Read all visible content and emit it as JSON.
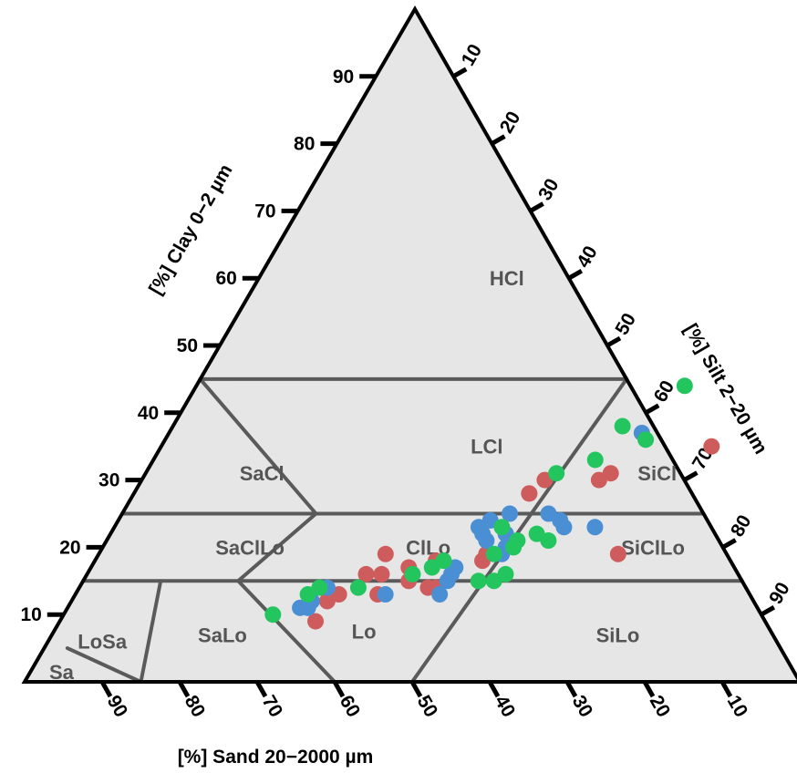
{
  "chart_data": {
    "type": "scatter",
    "subtype": "ternary soil texture triangle",
    "title": "",
    "axes": {
      "clay": {
        "label": "[%] Clay 0−2 µm",
        "ticks": [
          10,
          20,
          30,
          40,
          50,
          60,
          70,
          80,
          90
        ],
        "range": [
          0,
          100
        ]
      },
      "silt": {
        "label": "[%] Silt 2−20 µm",
        "ticks": [
          10,
          20,
          30,
          40,
          50,
          60,
          70,
          80,
          90
        ],
        "range": [
          0,
          100
        ]
      },
      "sand": {
        "label": "[%] Sand 20−2000 µm",
        "ticks": [
          90,
          80,
          70,
          60,
          50,
          40,
          30,
          20,
          10
        ],
        "range": [
          0,
          100
        ]
      }
    },
    "regions": [
      {
        "name": "HCl",
        "label": "HCl",
        "clay": 60,
        "silt": 32
      },
      {
        "name": "LCl",
        "label": "LCl",
        "clay": 35,
        "silt": 42
      },
      {
        "name": "SaCl",
        "label": "SaCl",
        "clay": 31,
        "silt": 15
      },
      {
        "name": "SiCl",
        "label": "SiCl",
        "clay": 31,
        "silt": 66
      },
      {
        "name": "SaClLo",
        "label": "SaClLo",
        "clay": 20,
        "silt": 19
      },
      {
        "name": "ClLo",
        "label": "ClLo",
        "clay": 20,
        "silt": 42
      },
      {
        "name": "SiClLo",
        "label": "SiClLo",
        "clay": 20,
        "silt": 71
      },
      {
        "name": "SaLo",
        "label": "SaLo",
        "clay": 7,
        "silt": 22
      },
      {
        "name": "Lo",
        "label": "Lo",
        "clay": 7.5,
        "silt": 40
      },
      {
        "name": "SiLo",
        "label": "SiLo",
        "clay": 7,
        "silt": 73
      },
      {
        "name": "LoSa",
        "label": "LoSa",
        "clay": 6,
        "silt": 7
      },
      {
        "name": "Sa",
        "label": "Sa",
        "clay": 1.5,
        "silt": 4
      }
    ],
    "series": [
      {
        "color": "#cf5c5c",
        "points": [
          {
            "clay": 35,
            "silt": 71
          },
          {
            "clay": 31,
            "silt": 60
          },
          {
            "clay": 30,
            "silt": 59
          },
          {
            "clay": 30,
            "silt": 52
          },
          {
            "clay": 28,
            "silt": 51
          },
          {
            "clay": 28,
            "silt": 51
          },
          {
            "clay": 22,
            "silt": 51
          },
          {
            "clay": 21,
            "silt": 52
          },
          {
            "clay": 19,
            "silt": 67
          },
          {
            "clay": 19,
            "silt": 50
          },
          {
            "clay": 18,
            "silt": 50
          },
          {
            "clay": 19,
            "silt": 37
          },
          {
            "clay": 18,
            "silt": 44
          },
          {
            "clay": 17,
            "silt": 41
          },
          {
            "clay": 16,
            "silt": 38
          },
          {
            "clay": 16,
            "silt": 36
          },
          {
            "clay": 15,
            "silt": 42
          },
          {
            "clay": 14,
            "silt": 46
          },
          {
            "clay": 14,
            "silt": 45
          },
          {
            "clay": 13,
            "silt": 39
          },
          {
            "clay": 13,
            "silt": 34
          },
          {
            "clay": 12,
            "silt": 33
          },
          {
            "clay": 9,
            "silt": 33
          }
        ]
      },
      {
        "color": "#4a8fd4",
        "points": [
          {
            "clay": 37,
            "silt": 61
          },
          {
            "clay": 24,
            "silt": 57
          },
          {
            "clay": 23,
            "silt": 62
          },
          {
            "clay": 25,
            "silt": 55
          },
          {
            "clay": 25,
            "silt": 50
          },
          {
            "clay": 24,
            "silt": 48
          },
          {
            "clay": 23,
            "silt": 47
          },
          {
            "clay": 23,
            "silt": 58
          },
          {
            "clay": 22,
            "silt": 51
          },
          {
            "clay": 22,
            "silt": 48
          },
          {
            "clay": 21,
            "silt": 49
          },
          {
            "clay": 20,
            "silt": 52
          },
          {
            "clay": 19,
            "silt": 52
          },
          {
            "clay": 17,
            "silt": 47
          },
          {
            "clay": 15,
            "silt": 47
          },
          {
            "clay": 13,
            "silt": 47
          },
          {
            "clay": 13,
            "silt": 40
          },
          {
            "clay": 12,
            "silt": 31
          },
          {
            "clay": 11,
            "silt": 31
          },
          {
            "clay": 11,
            "silt": 30
          },
          {
            "clay": 14,
            "silt": 32
          },
          {
            "clay": 16,
            "silt": 47
          }
        ]
      },
      {
        "color": "#22c55e",
        "points": [
          {
            "clay": 44,
            "silt": 63
          },
          {
            "clay": 38,
            "silt": 58
          },
          {
            "clay": 36,
            "silt": 62
          },
          {
            "clay": 33,
            "silt": 57
          },
          {
            "clay": 31,
            "silt": 53
          },
          {
            "clay": 23,
            "silt": 50
          },
          {
            "clay": 22,
            "silt": 55
          },
          {
            "clay": 21,
            "silt": 57
          },
          {
            "clay": 21,
            "silt": 53
          },
          {
            "clay": 20,
            "silt": 53
          },
          {
            "clay": 19,
            "silt": 51
          },
          {
            "clay": 18,
            "silt": 45
          },
          {
            "clay": 17,
            "silt": 44
          },
          {
            "clay": 16,
            "silt": 42
          },
          {
            "clay": 15,
            "silt": 53
          },
          {
            "clay": 15,
            "silt": 51
          },
          {
            "clay": 16,
            "silt": 54
          },
          {
            "clay": 14,
            "silt": 36
          },
          {
            "clay": 13,
            "silt": 30
          },
          {
            "clay": 10,
            "silt": 27
          },
          {
            "clay": 14,
            "silt": 31
          }
        ]
      }
    ],
    "region_boundaries": [
      {
        "from": {
          "clay": 45,
          "silt": 0
        },
        "to": {
          "clay": 45,
          "silt": 55
        }
      },
      {
        "from": {
          "clay": 25,
          "silt": 0
        },
        "to": {
          "clay": 25,
          "silt": 75
        }
      },
      {
        "from": {
          "clay": 15,
          "silt": 0
        },
        "to": {
          "clay": 15,
          "silt": 85
        }
      },
      {
        "from": {
          "clay": 45,
          "silt": 0
        },
        "to": {
          "clay": 25,
          "silt": 25
        }
      },
      {
        "from": {
          "clay": 25,
          "silt": 25
        },
        "to": {
          "clay": 15,
          "silt": 20
        }
      },
      {
        "from": {
          "clay": 15,
          "silt": 20
        },
        "to": {
          "clay": 0,
          "silt": 40
        }
      },
      {
        "from": {
          "clay": 45,
          "silt": 55
        },
        "to": {
          "clay": 0,
          "silt": 50
        }
      },
      {
        "from": {
          "clay": 15,
          "silt": 10
        },
        "to": {
          "clay": 0,
          "silt": 15
        }
      },
      {
        "from": {
          "clay": 5,
          "silt": 3
        },
        "to": {
          "clay": 0,
          "silt": 15
        }
      }
    ]
  }
}
